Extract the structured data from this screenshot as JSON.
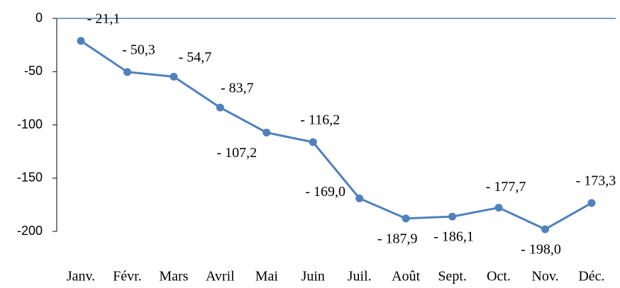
{
  "chart_data": {
    "type": "line",
    "categories": [
      "Janv.",
      "Févr.",
      "Mars",
      "Avril",
      "Mai",
      "Juin",
      "Juil.",
      "Août",
      "Sept.",
      "Oct.",
      "Nov.",
      "Déc."
    ],
    "series": [
      {
        "name": null,
        "color": "#4f81bd",
        "values": [
          -21.1,
          -50.3,
          -54.7,
          -83.7,
          -107.2,
          -116.2,
          -169.0,
          -187.9,
          -186.1,
          -177.7,
          -198.0,
          -173.3
        ],
        "value_labels": [
          "- 21,1",
          "- 50,3",
          "- 54,7",
          "- 83,7",
          "- 107,2",
          "- 116,2",
          "- 169,0",
          "- 187,9",
          "- 186,1",
          "- 177,7",
          "- 198,0",
          "- 173,3"
        ]
      }
    ],
    "ylim": [
      -200,
      0
    ],
    "yticks": [
      0,
      -50,
      -100,
      -150,
      -200
    ],
    "grid": false
  }
}
